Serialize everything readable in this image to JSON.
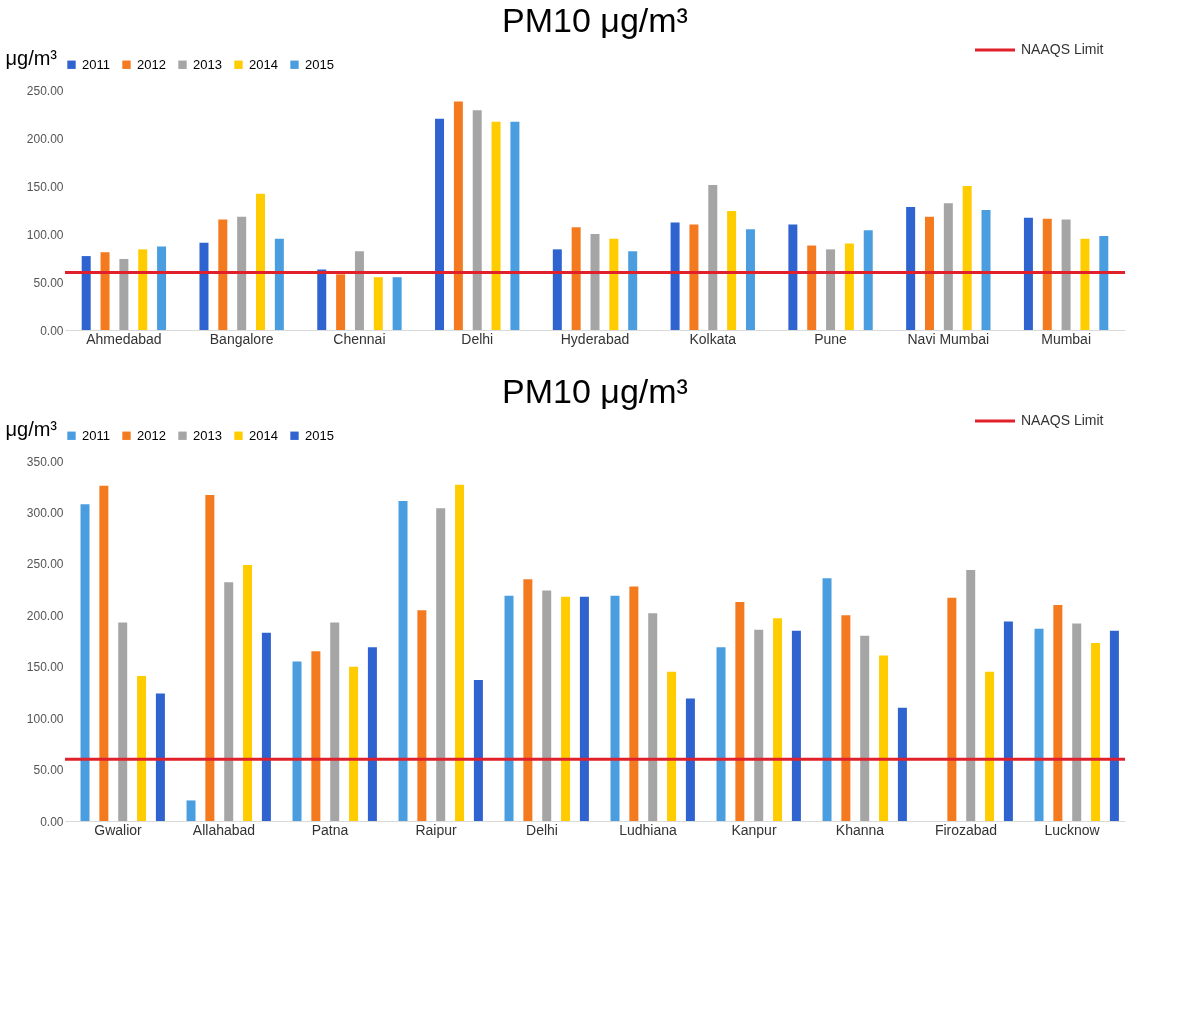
{
  "chart_data": [
    {
      "type": "bar",
      "title": "PM10 μg/m³",
      "ylabel": "μg/m³",
      "legend": "top",
      "categories": [
        "Ahmedabad",
        "Bangalore",
        "Chennai",
        "Delhi",
        "Hyderabad",
        "Kolkata",
        "Pune",
        "Navi Mumbai",
        "Mumbai"
      ],
      "series": [
        {
          "name": "2011",
          "color": "#2e63d0",
          "values": [
            77,
            91,
            63,
            220,
            84,
            112,
            110,
            128,
            117
          ]
        },
        {
          "name": "2012",
          "color": "#f47a20",
          "values": [
            81,
            115,
            58,
            238,
            107,
            110,
            88,
            118,
            116
          ]
        },
        {
          "name": "2013",
          "color": "#a5a5a5",
          "values": [
            74,
            118,
            82,
            229,
            100,
            151,
            84,
            132,
            115
          ]
        },
        {
          "name": "2014",
          "color": "#ffcc00",
          "values": [
            84,
            142,
            55,
            217,
            95,
            124,
            90,
            150,
            95
          ]
        },
        {
          "name": "2015",
          "color": "#4a9ee0",
          "values": [
            87,
            95,
            55,
            217,
            82,
            105,
            104,
            125,
            98
          ]
        }
      ],
      "ylim": [
        0,
        250
      ],
      "yticks": [
        {
          "value": 0,
          "label": "0.00"
        },
        {
          "value": 50,
          "label": "50.00"
        },
        {
          "value": 100,
          "label": "100.00"
        },
        {
          "value": 150,
          "label": "150.00"
        },
        {
          "value": 200,
          "label": "200.00"
        },
        {
          "value": 250,
          "label": "250.00"
        }
      ],
      "grid": false,
      "ref_lines": [
        {
          "axis": "y",
          "value": 60,
          "label": "NAAQS Limit",
          "color": "#e0202a"
        }
      ]
    },
    {
      "type": "bar",
      "title": "PM10 μg/m³",
      "ylabel": "μg/m³",
      "legend": "top",
      "categories": [
        "Gwalior",
        "Allahabad",
        "Patna",
        "Raipur",
        "Delhi",
        "Ludhiana",
        "Kanpur",
        "Khanna",
        "Firozabad",
        "Lucknow"
      ],
      "series": [
        {
          "name": "2011",
          "color": "#4a9ee0",
          "values": [
            308,
            20,
            155,
            311,
            219,
            219,
            169,
            236,
            null,
            187
          ]
        },
        {
          "name": "2012",
          "color": "#f47a20",
          "values": [
            326,
            317,
            165,
            205,
            235,
            228,
            213,
            200,
            217,
            210
          ]
        },
        {
          "name": "2013",
          "color": "#a5a5a5",
          "values": [
            193,
            232,
            193,
            304,
            224,
            202,
            186,
            180,
            244,
            192
          ]
        },
        {
          "name": "2014",
          "color": "#ffcc00",
          "values": [
            141,
            249,
            150,
            327,
            218,
            145,
            197,
            161,
            145,
            173
          ]
        },
        {
          "name": "2015",
          "color": "#2e63d0",
          "values": [
            124,
            183,
            169,
            137,
            218,
            119,
            185,
            110,
            194,
            185
          ]
        }
      ],
      "ylim": [
        0,
        350
      ],
      "yticks": [
        {
          "value": 0,
          "label": "0.00"
        },
        {
          "value": 50,
          "label": "50.00"
        },
        {
          "value": 100,
          "label": "100.00"
        },
        {
          "value": 150,
          "label": "150.00"
        },
        {
          "value": 200,
          "label": "200.00"
        },
        {
          "value": 250,
          "label": "250.00"
        },
        {
          "value": 300,
          "label": "300.00"
        },
        {
          "value": 350,
          "label": "350.00"
        }
      ],
      "grid": false,
      "ref_lines": [
        {
          "axis": "y",
          "value": 60,
          "label": "NAAQS Limit",
          "color": "#e0202a"
        }
      ]
    }
  ]
}
